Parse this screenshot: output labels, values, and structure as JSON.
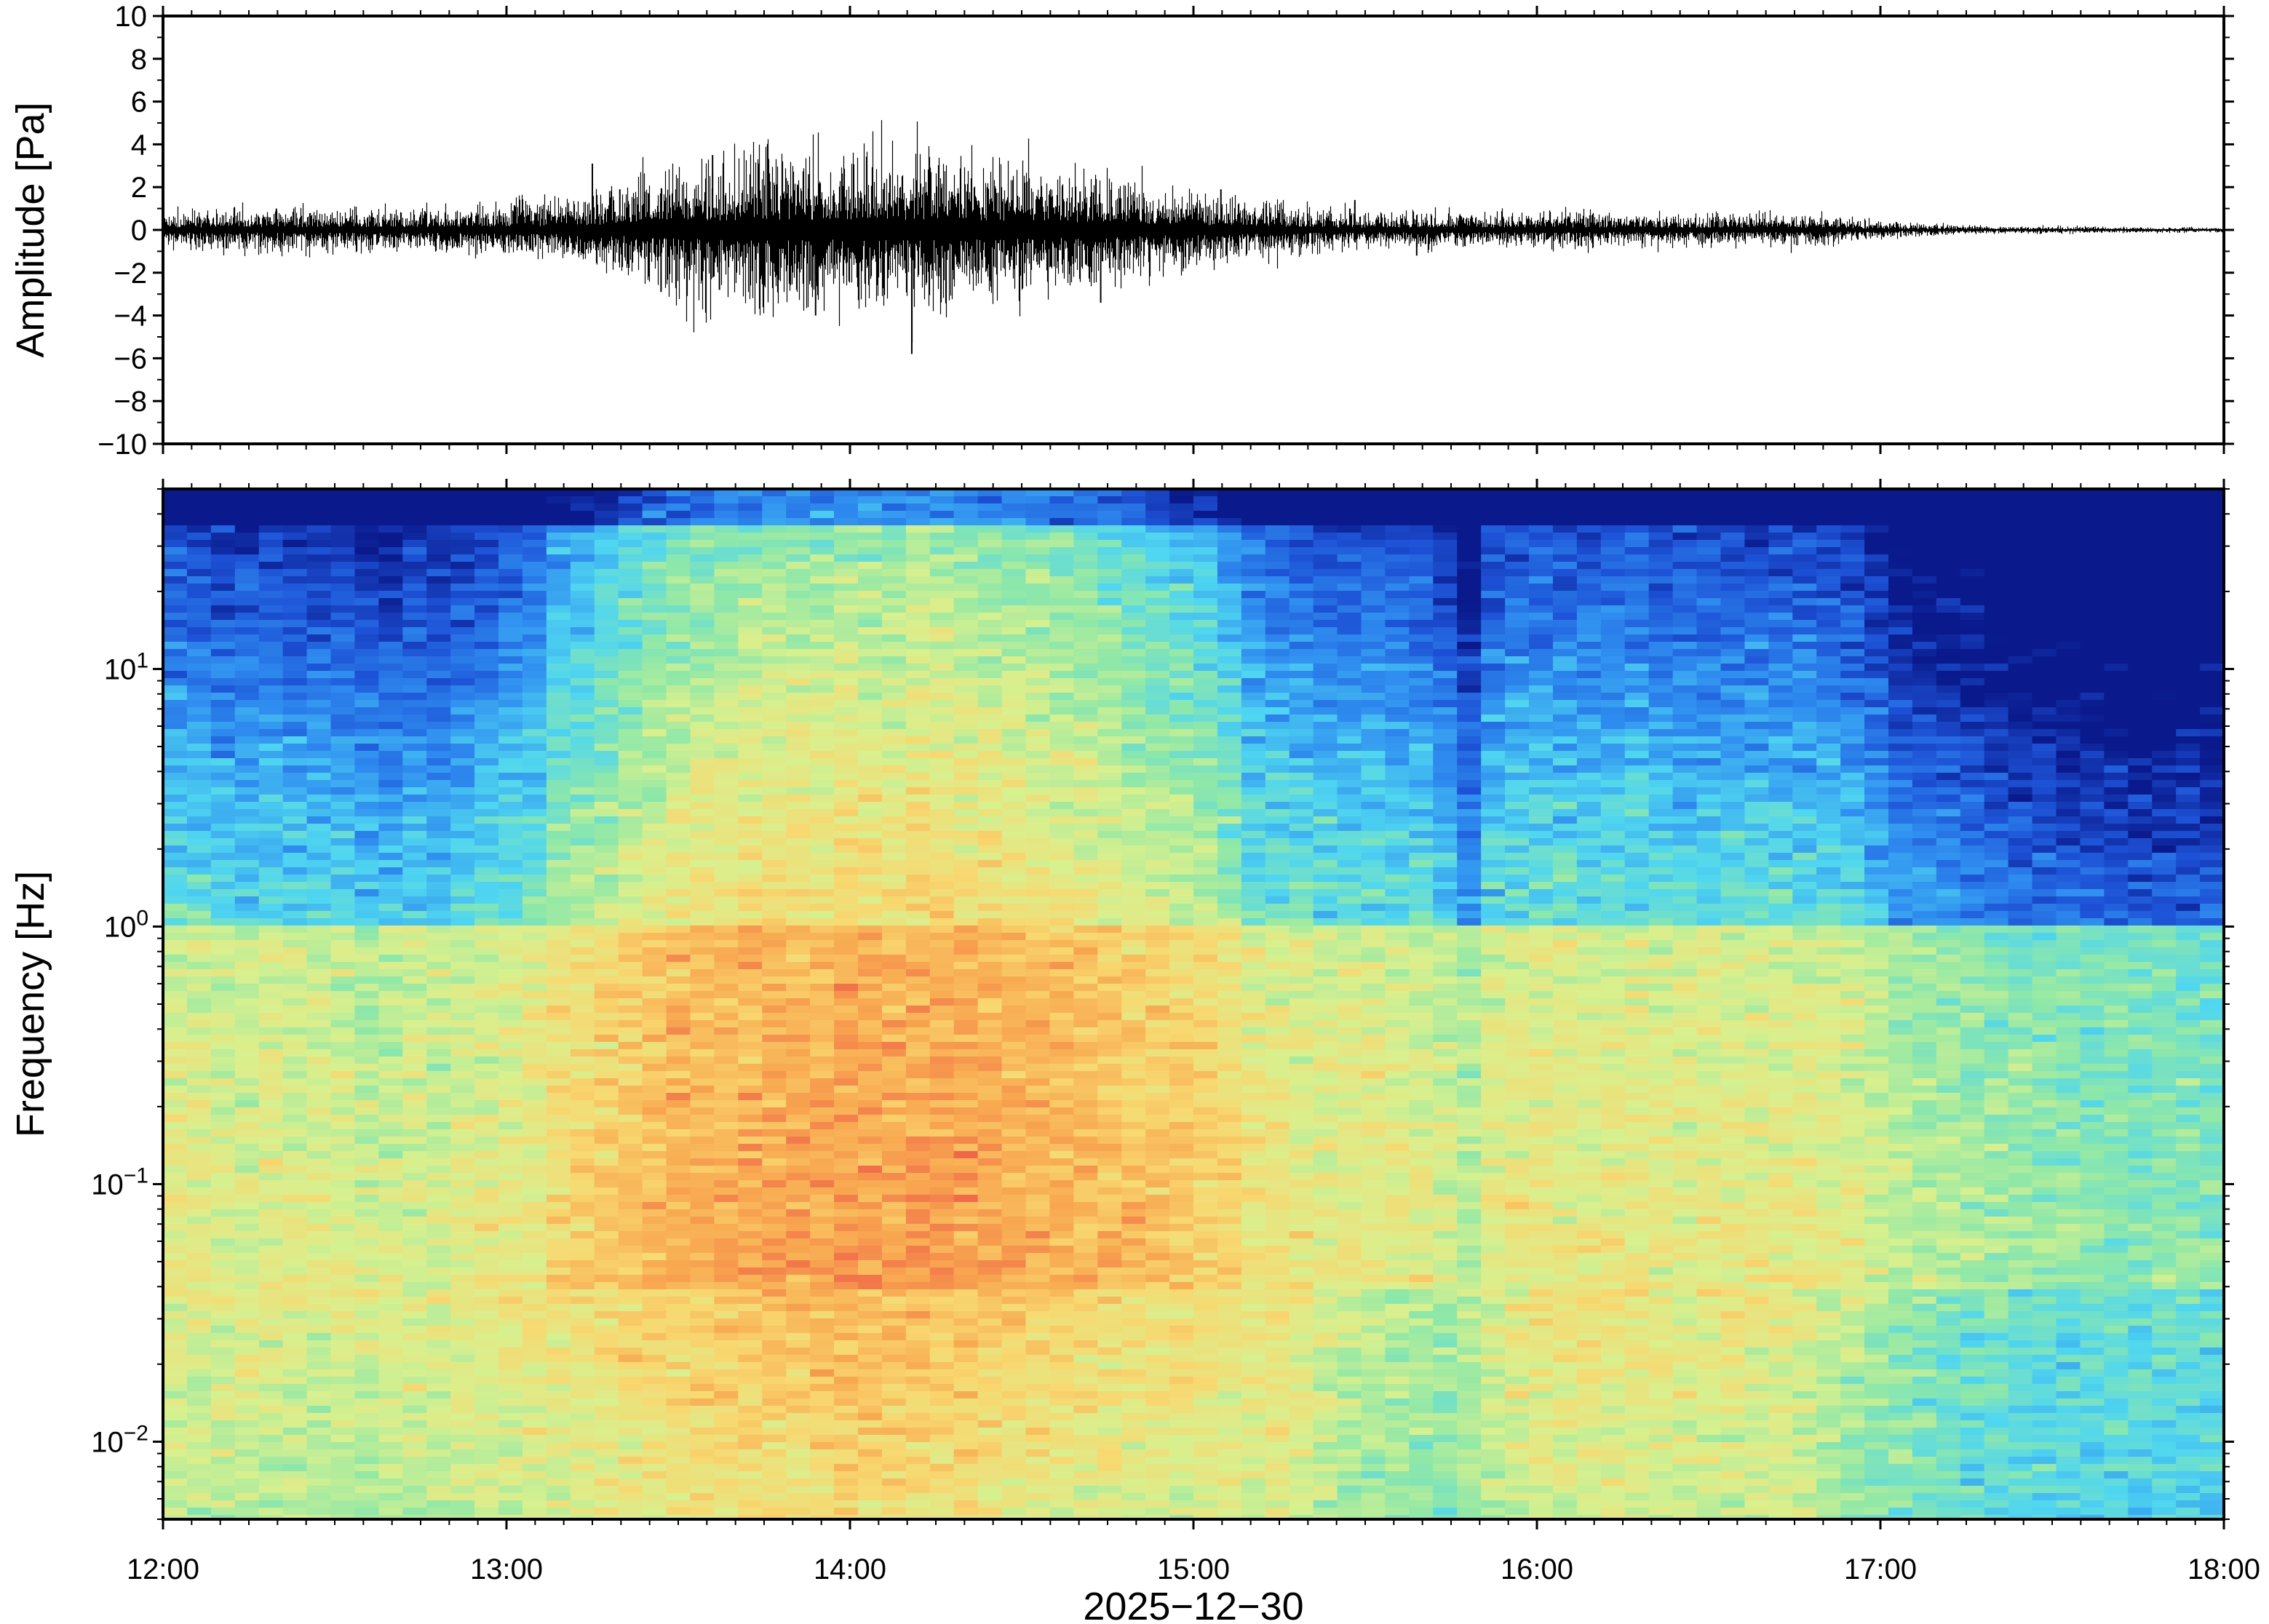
{
  "chart_data": [
    {
      "type": "line",
      "ylabel": "Amplitude [Pa]",
      "ylim": [
        -10,
        10
      ],
      "yticks": [
        "10",
        "8",
        "6",
        "4",
        "2",
        "0",
        "−2",
        "−4",
        "−6",
        "−8",
        "−10"
      ],
      "yticks_values": [
        10,
        8,
        6,
        4,
        2,
        0,
        -2,
        -4,
        -6,
        -8,
        -10
      ],
      "x_range": [
        "12:00",
        "18:00"
      ],
      "line_color": "#000000",
      "envelope_hours": [
        12.0,
        12.25,
        12.5,
        12.75,
        13.0,
        13.25,
        13.5,
        13.75,
        14.0,
        14.25,
        14.5,
        14.75,
        15.0,
        15.25,
        15.5,
        15.75,
        16.0,
        16.25,
        16.5,
        16.75,
        17.0,
        17.25,
        17.5,
        17.75,
        18.0
      ],
      "envelope_pa": [
        0.4,
        0.5,
        0.5,
        0.5,
        0.6,
        0.9,
        1.6,
        1.9,
        1.8,
        1.9,
        1.6,
        1.3,
        0.9,
        0.6,
        0.4,
        0.4,
        0.45,
        0.4,
        0.35,
        0.4,
        0.2,
        0.1,
        0.08,
        0.07,
        0.06
      ],
      "spikes": [
        {
          "hour": 12.33,
          "value": 1.0
        },
        {
          "hour": 13.25,
          "value": 3.1
        },
        {
          "hour": 13.33,
          "value": 1.9
        },
        {
          "hour": 13.45,
          "value": -2.9
        },
        {
          "hour": 13.6,
          "value": 3.5
        },
        {
          "hour": 13.62,
          "value": -2.8
        },
        {
          "hour": 13.88,
          "value": 2.6
        },
        {
          "hour": 13.9,
          "value": -4.0
        },
        {
          "hour": 14.1,
          "value": 2.2
        },
        {
          "hour": 14.18,
          "value": -5.8
        },
        {
          "hour": 14.4,
          "value": 2.0
        },
        {
          "hour": 14.67,
          "value": 1.8
        },
        {
          "hour": 14.73,
          "value": -3.4
        },
        {
          "hour": 15.08,
          "value": 1.9
        },
        {
          "hour": 15.47,
          "value": 1.4
        },
        {
          "hour": 15.65,
          "value": -1.2
        }
      ]
    },
    {
      "type": "heatmap",
      "xlabel": "2025−12−30",
      "ylabel": "Frequency [Hz]",
      "xticks": [
        "12:00",
        "13:00",
        "14:00",
        "15:00",
        "16:00",
        "17:00",
        "18:00"
      ],
      "x_hours": [
        12,
        13,
        14,
        15,
        16,
        17,
        18
      ],
      "yscale": "log",
      "ylim": [
        0.005,
        50
      ],
      "yticks": [
        {
          "base": "10",
          "exp": "1",
          "value": 10
        },
        {
          "base": "10",
          "exp": "0",
          "value": 1
        },
        {
          "base": "10",
          "exp": "−1",
          "value": 0.1
        },
        {
          "base": "10",
          "exp": "−2",
          "value": 0.01
        }
      ],
      "colormap": [
        "#0a1a8c",
        "#1d52d6",
        "#2f8ef0",
        "#4fd6f0",
        "#8fe8a8",
        "#d8f08e",
        "#f8d870",
        "#f8a850",
        "#f06048"
      ],
      "column_minutes": 5,
      "column_energy": [
        0.45,
        0.45,
        0.42,
        0.42,
        0.45,
        0.42,
        0.43,
        0.42,
        0.38,
        0.38,
        0.4,
        0.38,
        0.42,
        0.45,
        0.48,
        0.5,
        0.6,
        0.62,
        0.66,
        0.7,
        0.74,
        0.78,
        0.8,
        0.8,
        0.82,
        0.84,
        0.83,
        0.83,
        0.85,
        0.84,
        0.83,
        0.86,
        0.85,
        0.84,
        0.83,
        0.82,
        0.8,
        0.78,
        0.77,
        0.75,
        0.72,
        0.7,
        0.68,
        0.66,
        0.6,
        0.52,
        0.5,
        0.48,
        0.46,
        0.46,
        0.47,
        0.46,
        0.45,
        0.4,
        0.3,
        0.45,
        0.47,
        0.48,
        0.47,
        0.46,
        0.47,
        0.48,
        0.46,
        0.45,
        0.46,
        0.44,
        0.45,
        0.46,
        0.45,
        0.44,
        0.42,
        0.36,
        0.3,
        0.28,
        0.26,
        0.24,
        0.22,
        0.2,
        0.18,
        0.17,
        0.16,
        0.15,
        0.14,
        0.14,
        0.14,
        0.14
      ],
      "low_freq_energy": [
        0.62,
        0.62,
        0.6,
        0.62,
        0.66,
        0.7,
        0.76,
        0.8,
        0.82,
        0.8,
        0.75,
        0.7,
        0.7,
        0.68,
        0.55,
        0.5,
        0.68,
        0.68,
        0.66,
        0.64,
        0.5,
        0.4,
        0.38,
        0.36,
        0.36
      ]
    }
  ]
}
